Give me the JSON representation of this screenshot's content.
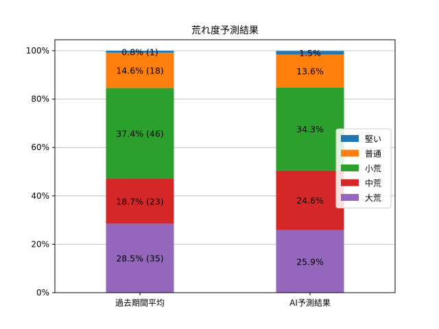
{
  "chart_data": {
    "type": "bar",
    "stacked": true,
    "title": "荒れ度予測結果",
    "xlabel": "",
    "ylabel": "",
    "ylim": [
      0,
      100
    ],
    "yticks": [
      "0%",
      "20%",
      "40%",
      "60%",
      "80%",
      "100%"
    ],
    "categories": [
      "過去期間平均",
      "AI予測結果"
    ],
    "grid": "y",
    "legend_position": "right",
    "series": [
      {
        "name": "大荒",
        "color": "#9467bd",
        "values": [
          28.5,
          25.9
        ],
        "labels": [
          "28.5% (35)",
          "25.9%"
        ]
      },
      {
        "name": "中荒",
        "color": "#d62728",
        "values": [
          18.7,
          24.6
        ],
        "labels": [
          "18.7% (23)",
          "24.6%"
        ]
      },
      {
        "name": "小荒",
        "color": "#2ca02c",
        "values": [
          37.4,
          34.3
        ],
        "labels": [
          "37.4% (46)",
          "34.3%"
        ]
      },
      {
        "name": "普通",
        "color": "#ff7f0e",
        "values": [
          14.6,
          13.6
        ],
        "labels": [
          "14.6% (18)",
          "13.6%"
        ]
      },
      {
        "name": "堅い",
        "color": "#1f77b4",
        "values": [
          0.8,
          1.5
        ],
        "labels": [
          "0.8% (1)",
          "1.5%"
        ]
      }
    ],
    "legend_order": [
      "堅い",
      "普通",
      "小荒",
      "中荒",
      "大荒"
    ]
  }
}
